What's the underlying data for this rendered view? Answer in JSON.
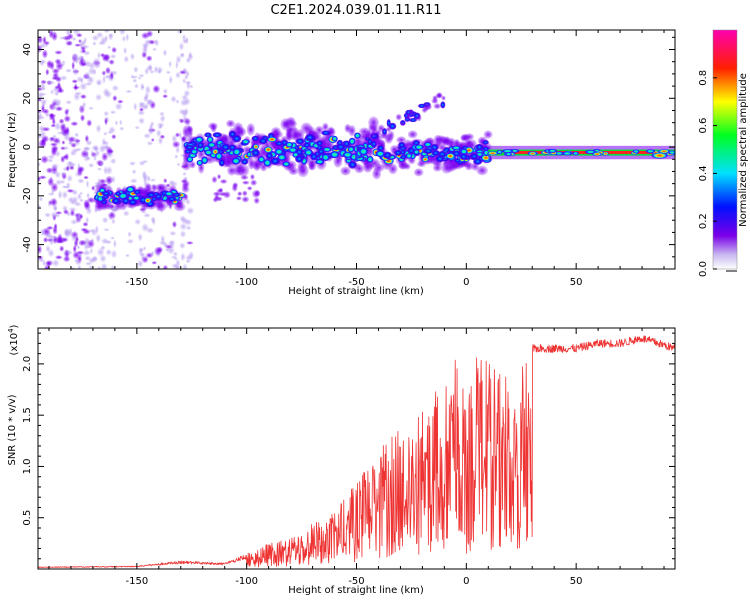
{
  "figure_title": "C2E1.2024.039.01.11.R11",
  "colors": {
    "snr_line": "#ee3333",
    "axis": "#000000",
    "background": "#ffffff"
  },
  "chart_data": [
    {
      "type": "heatmap",
      "title": "",
      "xlabel": "Height of straight line (km)",
      "ylabel": "Frequency (Hz)",
      "xlim": [
        -195,
        95
      ],
      "ylim": [
        -50,
        48
      ],
      "xticks": [
        -150,
        -100,
        -50,
        0,
        50
      ],
      "yticks": [
        -40,
        -20,
        0,
        20,
        40
      ],
      "colorbar": {
        "label": "Normalized spectral amplitude",
        "range": [
          0,
          1
        ],
        "ticks": [
          0.0,
          0.2,
          0.4,
          0.6,
          0.8
        ],
        "tick_labels": [
          "0.0",
          "0.2",
          "0.4",
          "0.6",
          "0.8"
        ],
        "colormap": "rainbow (violet → blue → cyan → green → yellow → red → magenta)"
      },
      "features": [
        {
          "name": "diffuse-noise-region",
          "x_range": [
            -195,
            -125
          ],
          "description": "scattered low-amplitude blobs across all frequencies"
        },
        {
          "name": "line-segment-1",
          "x_range": [
            -168,
            -128
          ],
          "freq": [
            -23,
            -18
          ],
          "peak_amplitude": 0.9
        },
        {
          "name": "line-segment-2",
          "x_range": [
            -128,
            -40
          ],
          "freq": [
            -4,
            3
          ],
          "peak_amplitude": 0.6
        },
        {
          "name": "line-segment-3",
          "x_range": [
            -40,
            10
          ],
          "freq": [
            -5,
            0
          ],
          "peak_amplitude": 0.9
        },
        {
          "name": "line-segment-4",
          "x_range": [
            10,
            95
          ],
          "freq": [
            -4,
            -1
          ],
          "peak_amplitude": 0.95
        }
      ]
    },
    {
      "type": "line",
      "title": "",
      "xlabel": "Height of straight line (km)",
      "ylabel": "SNR (10 * v/v)",
      "y_scale_label": "(x10",
      "y_scale_exponent": "4",
      "y_scale_suffix": ")",
      "xlim": [
        -195,
        95
      ],
      "ylim": [
        0,
        2.35
      ],
      "xticks": [
        -150,
        -100,
        -50,
        0,
        50
      ],
      "yticks": [
        0.5,
        1.0,
        1.5,
        2.0
      ],
      "ytick_labels": [
        "0.5",
        "1.0",
        "1.5",
        "2.0"
      ],
      "series": [
        {
          "name": "SNR",
          "envelope_x": [
            -195,
            -150,
            -130,
            -110,
            -100,
            -90,
            -80,
            -70,
            -60,
            -50,
            -40,
            -30,
            -20,
            -10,
            -5,
            0,
            5,
            10,
            15,
            20,
            25,
            30,
            40,
            50,
            60,
            70,
            80,
            95
          ],
          "envelope_y": [
            0.02,
            0.03,
            0.08,
            0.06,
            0.15,
            0.25,
            0.3,
            0.45,
            0.55,
            0.85,
            1.15,
            1.4,
            1.6,
            1.85,
            2.2,
            1.6,
            2.1,
            2.05,
            1.9,
            1.95,
            2.05,
            2.15,
            2.15,
            2.15,
            2.2,
            2.2,
            2.25,
            2.15
          ]
        }
      ]
    }
  ]
}
